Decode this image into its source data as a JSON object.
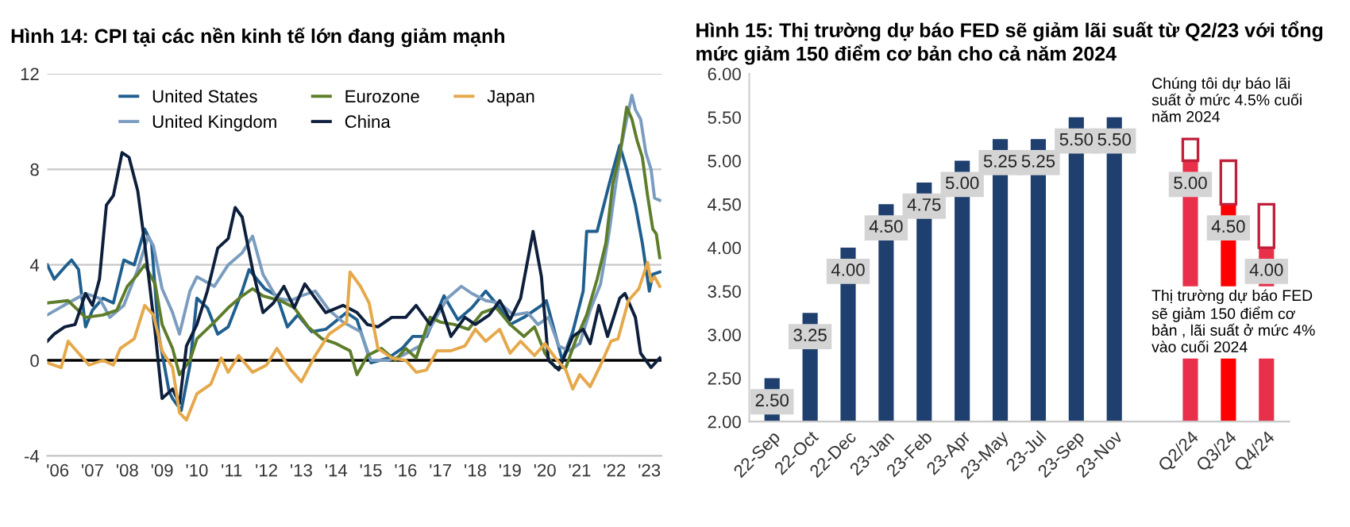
{
  "chart_data": [
    {
      "type": "line",
      "title": "Hình 14: CPI tại các nền kinh tế lớn đang giảm mạnh",
      "xlim": [
        2005.7,
        2023.35
      ],
      "ylim": [
        -4,
        12
      ],
      "yticks": [
        -4,
        0,
        4,
        8,
        12
      ],
      "xticks": [
        {
          "value": 2006,
          "label": "'06"
        },
        {
          "value": 2007,
          "label": "'07"
        },
        {
          "value": 2008,
          "label": "'08"
        },
        {
          "value": 2009,
          "label": "'09"
        },
        {
          "value": 2010,
          "label": "'10"
        },
        {
          "value": 2011,
          "label": "'11"
        },
        {
          "value": 2012,
          "label": "'12"
        },
        {
          "value": 2013,
          "label": "'13"
        },
        {
          "value": 2014,
          "label": "'14"
        },
        {
          "value": 2015,
          "label": "'15"
        },
        {
          "value": 2016,
          "label": "'16"
        },
        {
          "value": 2017,
          "label": "'17"
        },
        {
          "value": 2018,
          "label": "'18"
        },
        {
          "value": 2019,
          "label": "'19"
        },
        {
          "value": 2020,
          "label": "'20"
        },
        {
          "value": 2021,
          "label": "'21"
        },
        {
          "value": 2022,
          "label": "'22"
        },
        {
          "value": 2023,
          "label": "'23"
        }
      ],
      "grid": "y",
      "legend": "top right",
      "marker": "none",
      "line_style": "solid",
      "ref_lines": [
        {
          "axis": "y",
          "value": 0,
          "color": "#000000"
        }
      ],
      "series": [
        {
          "name": "United States",
          "color": "#1f5f8f",
          "x": [
            2005.7,
            2005.9,
            2006.2,
            2006.4,
            2006.6,
            2006.8,
            2007.0,
            2007.3,
            2007.6,
            2007.9,
            2008.2,
            2008.5,
            2008.7,
            2008.9,
            2009.2,
            2009.3,
            2009.55,
            2009.8,
            2010.0,
            2010.3,
            2010.6,
            2010.9,
            2011.3,
            2011.5,
            2011.95,
            2012.3,
            2012.6,
            2012.9,
            2013.3,
            2013.7,
            2014.3,
            2014.6,
            2015.0,
            2015.5,
            2015.9,
            2016.2,
            2016.6,
            2017.1,
            2017.5,
            2017.9,
            2018.3,
            2018.7,
            2019.0,
            2019.4,
            2019.9,
            2020.04,
            2020.5,
            2020.8,
            2021.1,
            2021.2,
            2021.5,
            2021.85,
            2022.15,
            2022.35,
            2022.6,
            2022.8,
            2023.0,
            2023.1,
            2023.3
          ],
          "values": [
            4.0,
            3.4,
            3.9,
            4.2,
            3.8,
            1.4,
            2.1,
            2.6,
            2.4,
            4.2,
            4.0,
            5.5,
            4.9,
            1.1,
            -1.3,
            -1.6,
            -2.1,
            -0.2,
            2.6,
            2.2,
            1.1,
            1.4,
            2.9,
            3.8,
            3.0,
            2.7,
            1.4,
            1.9,
            1.2,
            1.3,
            2.0,
            1.7,
            -0.1,
            0.1,
            0.5,
            1.0,
            1.0,
            2.7,
            1.7,
            2.2,
            2.9,
            2.2,
            1.5,
            1.8,
            2.3,
            2.5,
            0.0,
            1.2,
            2.9,
            5.4,
            5.4,
            7.4,
            9.0,
            8.0,
            6.5,
            4.9,
            2.9,
            3.6,
            3.7
          ]
        },
        {
          "name": "United Kingdom",
          "color": "#7a9cbf",
          "x": [
            2005.7,
            2006.3,
            2006.8,
            2007.2,
            2007.5,
            2007.9,
            2008.3,
            2008.6,
            2008.75,
            2009.0,
            2009.3,
            2009.5,
            2009.8,
            2010.0,
            2010.5,
            2010.9,
            2011.3,
            2011.6,
            2011.9,
            2012.3,
            2012.7,
            2013.0,
            2013.4,
            2013.8,
            2014.2,
            2014.7,
            2015.0,
            2015.5,
            2015.9,
            2016.4,
            2016.8,
            2017.2,
            2017.6,
            2017.9,
            2018.3,
            2018.7,
            2019.1,
            2019.5,
            2019.8,
            2020.1,
            2020.4,
            2020.7,
            2021.0,
            2021.3,
            2021.6,
            2021.85,
            2022.0,
            2022.2,
            2022.35,
            2022.5,
            2022.6,
            2022.75,
            2022.9,
            2023.05,
            2023.15,
            2023.3
          ],
          "values": [
            1.9,
            2.4,
            2.8,
            2.6,
            1.8,
            2.3,
            3.8,
            5.2,
            4.8,
            3.0,
            2.0,
            1.1,
            2.9,
            3.5,
            3.1,
            4.0,
            4.5,
            5.2,
            3.6,
            2.6,
            2.5,
            2.7,
            2.9,
            2.1,
            1.6,
            1.2,
            0.0,
            0.0,
            0.2,
            0.6,
            1.6,
            2.6,
            3.1,
            2.8,
            2.5,
            2.4,
            1.9,
            2.0,
            1.5,
            1.8,
            0.6,
            0.4,
            0.7,
            2.1,
            3.2,
            5.4,
            7.0,
            9.0,
            10.1,
            11.1,
            10.5,
            10.1,
            8.7,
            8.0,
            6.8,
            6.7
          ]
        },
        {
          "name": "Eurozone",
          "color": "#5e7d2a",
          "x": [
            2005.7,
            2006.3,
            2006.8,
            2007.3,
            2007.7,
            2008.0,
            2008.3,
            2008.5,
            2008.8,
            2009.0,
            2009.3,
            2009.5,
            2009.8,
            2010.0,
            2010.5,
            2010.9,
            2011.3,
            2011.6,
            2011.9,
            2012.4,
            2012.8,
            2013.2,
            2013.6,
            2014.0,
            2014.4,
            2014.6,
            2014.9,
            2015.3,
            2015.7,
            2016.0,
            2016.3,
            2016.7,
            2017.0,
            2017.4,
            2017.8,
            2018.2,
            2018.6,
            2019.0,
            2019.4,
            2019.7,
            2020.0,
            2020.3,
            2020.6,
            2020.9,
            2021.2,
            2021.5,
            2021.75,
            2021.95,
            2022.15,
            2022.35,
            2022.5,
            2022.65,
            2022.8,
            2022.95,
            2023.1,
            2023.2,
            2023.3
          ],
          "values": [
            2.4,
            2.5,
            1.8,
            1.9,
            2.1,
            3.1,
            3.6,
            4.0,
            3.2,
            1.5,
            0.5,
            -0.6,
            0.0,
            0.9,
            1.6,
            2.2,
            2.7,
            3.0,
            2.7,
            2.5,
            2.2,
            1.4,
            0.9,
            0.7,
            0.4,
            -0.6,
            0.2,
            0.5,
            0.0,
            0.5,
            0.1,
            1.8,
            1.6,
            1.5,
            1.3,
            2.0,
            2.2,
            1.5,
            1.0,
            1.4,
            0.3,
            -0.3,
            -0.3,
            0.9,
            1.9,
            3.4,
            4.9,
            7.4,
            8.6,
            10.6,
            10.1,
            9.2,
            8.5,
            6.9,
            5.5,
            5.3,
            4.3
          ]
        },
        {
          "name": "China",
          "color": "#0d1f3c",
          "x": [
            2005.7,
            2005.9,
            2006.2,
            2006.5,
            2006.8,
            2007.0,
            2007.2,
            2007.4,
            2007.6,
            2007.85,
            2008.05,
            2008.3,
            2008.5,
            2008.8,
            2009.0,
            2009.3,
            2009.5,
            2009.7,
            2010.0,
            2010.3,
            2010.6,
            2010.9,
            2011.1,
            2011.3,
            2011.6,
            2011.9,
            2012.2,
            2012.5,
            2012.8,
            2013.1,
            2013.4,
            2013.7,
            2014.2,
            2014.6,
            2014.9,
            2015.2,
            2015.6,
            2016.0,
            2016.3,
            2016.7,
            2017.0,
            2017.3,
            2017.7,
            2018.0,
            2018.4,
            2018.7,
            2019.0,
            2019.3,
            2019.66,
            2019.9,
            2020.1,
            2020.4,
            2020.8,
            2021.1,
            2021.3,
            2021.55,
            2021.8,
            2022.15,
            2022.3,
            2022.6,
            2022.75,
            2023.05,
            2023.3
          ],
          "values": [
            0.8,
            1.1,
            1.4,
            1.5,
            2.8,
            2.3,
            3.4,
            6.5,
            6.9,
            8.7,
            8.5,
            7.1,
            4.9,
            1.2,
            -1.6,
            -1.2,
            -1.8,
            0.6,
            1.5,
            2.9,
            4.7,
            5.1,
            6.4,
            6.0,
            3.8,
            2.0,
            2.4,
            3.1,
            2.2,
            3.2,
            2.6,
            2.0,
            2.3,
            2.0,
            1.5,
            1.4,
            1.8,
            1.8,
            2.3,
            1.5,
            2.3,
            1.0,
            1.8,
            1.5,
            1.9,
            2.5,
            1.7,
            2.6,
            5.4,
            3.5,
            0.0,
            -0.4,
            1.0,
            1.3,
            0.7,
            2.3,
            1.0,
            2.6,
            2.8,
            1.8,
            0.3,
            -0.3,
            0.1
          ]
        },
        {
          "name": "Japan",
          "color": "#e5a84a",
          "x": [
            2005.7,
            2006.1,
            2006.3,
            2006.6,
            2006.9,
            2007.3,
            2007.6,
            2007.8,
            2008.2,
            2008.5,
            2008.75,
            2009.0,
            2009.3,
            2009.5,
            2009.7,
            2010.0,
            2010.4,
            2010.7,
            2010.9,
            2011.2,
            2011.6,
            2012.0,
            2012.3,
            2012.7,
            2013.0,
            2013.4,
            2013.8,
            2014.3,
            2014.4,
            2014.7,
            2014.95,
            2015.2,
            2015.6,
            2016.0,
            2016.3,
            2016.6,
            2016.9,
            2017.3,
            2017.7,
            2018.0,
            2018.3,
            2018.7,
            2019.0,
            2019.3,
            2019.7,
            2020.0,
            2020.3,
            2020.6,
            2020.8,
            2021.0,
            2021.3,
            2021.6,
            2021.9,
            2022.1,
            2022.4,
            2022.7,
            2022.95,
            2023.05,
            2023.15,
            2023.3
          ],
          "values": [
            -0.1,
            -0.3,
            0.8,
            0.3,
            -0.2,
            0.0,
            -0.2,
            0.5,
            0.9,
            2.3,
            1.9,
            0.4,
            -0.3,
            -2.2,
            -2.5,
            -1.4,
            -1.0,
            0.1,
            -0.5,
            0.2,
            -0.5,
            -0.2,
            0.5,
            -0.4,
            -0.9,
            0.2,
            1.1,
            1.6,
            3.7,
            3.1,
            2.4,
            0.5,
            0.1,
            0.0,
            -0.5,
            -0.4,
            0.4,
            0.4,
            0.6,
            1.3,
            0.8,
            1.3,
            0.3,
            0.8,
            0.2,
            0.7,
            0.1,
            -0.4,
            -1.2,
            -0.6,
            -1.1,
            -0.2,
            0.8,
            0.9,
            2.5,
            3.0,
            4.1,
            3.3,
            3.5,
            3.1
          ]
        }
      ]
    },
    {
      "type": "bar",
      "title": "Hình 15: Thị trường dự báo FED sẽ giảm lãi suất từ Q2/23 với tổng\nmức giảm 150 điểm cơ bản cho cả năm 2024",
      "categories": [
        "22-Sep",
        "22-Oct",
        "22-Dec",
        "23-Jan",
        "23-Feb",
        "23-Apr",
        "23-May",
        "23-Jul",
        "23-Sep",
        "23-Nov",
        null,
        "Q2/24",
        "Q3/24",
        "Q4/24"
      ],
      "ylim": [
        2.0,
        6.0
      ],
      "yticks": [
        {
          "value": 2.0,
          "label": "2.00"
        },
        {
          "value": 2.5,
          "label": "2.50"
        },
        {
          "value": 3.0,
          "label": "3.00"
        },
        {
          "value": 3.5,
          "label": "3.50"
        },
        {
          "value": 4.0,
          "label": "4.00"
        },
        {
          "value": 4.5,
          "label": "4.50"
        },
        {
          "value": 5.0,
          "label": "5.00"
        },
        {
          "value": 5.5,
          "label": "5.50"
        },
        {
          "value": 6.0,
          "label": "6.00"
        }
      ],
      "series": [
        {
          "color": "#1f3f6e",
          "values": [
            2.5,
            3.25,
            4.0,
            4.5,
            4.75,
            5.0,
            5.25,
            5.25,
            5.5,
            5.5,
            null,
            null,
            null,
            null
          ],
          "value_labels": [
            "2.50",
            "3.25",
            "4.00",
            "4.50",
            "4.75",
            "5.00",
            "5.25",
            "5.25",
            "5.50",
            "5.50",
            null,
            null,
            null,
            null
          ]
        },
        {
          "colors": [
            null,
            null,
            null,
            null,
            null,
            null,
            null,
            null,
            null,
            null,
            null,
            "#e8304a",
            "#ff0000",
            "#e8304a"
          ],
          "values": [
            null,
            null,
            null,
            null,
            null,
            null,
            null,
            null,
            null,
            null,
            null,
            5.0,
            4.5,
            4.0
          ],
          "value_labels": [
            null,
            null,
            null,
            null,
            null,
            null,
            null,
            null,
            null,
            null,
            null,
            "5.00",
            "4.50",
            "4.00"
          ]
        },
        {
          "color": "#c0203a",
          "base": [
            null,
            null,
            null,
            null,
            null,
            null,
            null,
            null,
            null,
            null,
            null,
            5.0,
            4.5,
            4.0
          ],
          "values": [
            null,
            null,
            null,
            null,
            null,
            null,
            null,
            null,
            null,
            null,
            null,
            0.25,
            0.5,
            0.5
          ]
        }
      ],
      "annotations": [
        "Chúng tôi dự báo lãi\nsuất ở mức 4.5% cuối\nnăm 2024",
        "Thị trường dự báo FED\nsẽ giảm 150 điểm cơ\nbản , lãi suất ở mức 4%\nvào cuối 2024"
      ]
    }
  ]
}
